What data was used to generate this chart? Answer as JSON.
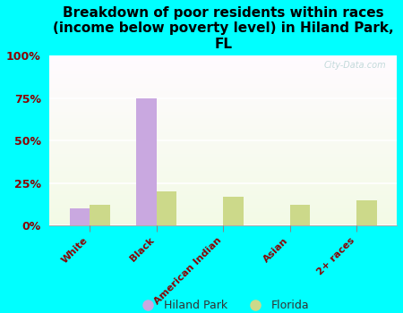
{
  "title": "Breakdown of poor residents within races\n(income below poverty level) in Hiland Park,\nFL",
  "categories": [
    "White",
    "Black",
    "American Indian",
    "Asian",
    "2+ races"
  ],
  "hiland_park": [
    10,
    75,
    0,
    0,
    0
  ],
  "florida": [
    12,
    20,
    17,
    12,
    15
  ],
  "hiland_color": "#c9a8e0",
  "florida_color": "#ccd98a",
  "background_color": "#00ffff",
  "title_color": "#000000",
  "axis_label_color": "#8b0000",
  "ylim": [
    0,
    100
  ],
  "yticks": [
    0,
    25,
    50,
    75,
    100
  ],
  "ytick_labels": [
    "0%",
    "25%",
    "50%",
    "75%",
    "100%"
  ],
  "watermark": "City-Data.com",
  "legend_hiland": "Hiland Park",
  "legend_florida": "Florida",
  "bar_width": 0.3
}
